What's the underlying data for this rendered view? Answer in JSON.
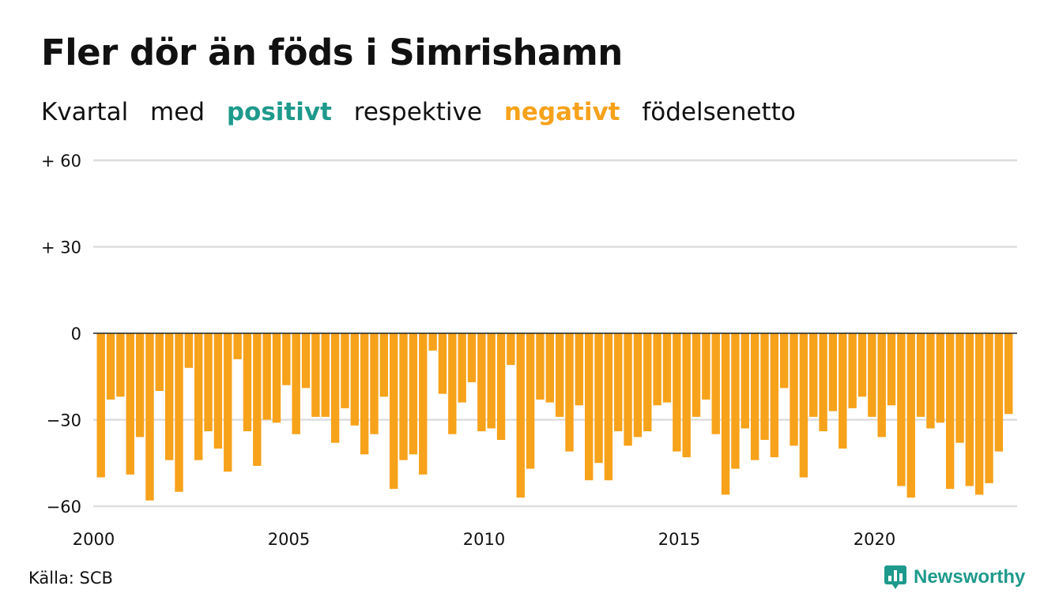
{
  "title": "Fler dör än föds i Simrishamn",
  "subtitle": {
    "parts": [
      "Kvartal",
      "med",
      "positivt",
      "respektive",
      "negativt",
      "födelsenetto"
    ]
  },
  "source": "Källa: SCB",
  "brand": {
    "name": "Newsworthy",
    "icon": "newsworthy-logo-icon"
  },
  "colors": {
    "positive": "#1e9a8c",
    "negative": "#f7a21b",
    "grid": "#dddddd",
    "zero_line": "#222222"
  },
  "chart_data": {
    "type": "bar",
    "title": "Fler dör än föds i Simrishamn",
    "xlabel": "",
    "ylabel": "",
    "ylim": [
      -60,
      60
    ],
    "yticks": [
      60,
      30,
      0,
      -30,
      -60
    ],
    "ytick_labels": [
      "+ 60",
      "+ 30",
      "0",
      "−30",
      "−60"
    ],
    "xticks": [
      2000,
      2005,
      2010,
      2015,
      2020
    ],
    "xtick_labels": [
      "2000",
      "2005",
      "2010",
      "2015",
      "2020"
    ],
    "grid": true,
    "frequency": "quarterly",
    "first_period": "2000 Q1",
    "values": [
      -50,
      -23,
      -22,
      -49,
      -36,
      -58,
      -20,
      -44,
      -55,
      -12,
      -44,
      -34,
      -40,
      -48,
      -9,
      -34,
      -46,
      -30,
      -31,
      -18,
      -35,
      -19,
      -29,
      -29,
      -38,
      -26,
      -32,
      -42,
      -35,
      -22,
      -54,
      -44,
      -42,
      -49,
      -6,
      -21,
      -35,
      -24,
      -17,
      -34,
      -33,
      -37,
      -11,
      -57,
      -47,
      -23,
      -24,
      -29,
      -41,
      -25,
      -51,
      -45,
      -51,
      -34,
      -39,
      -36,
      -34,
      -25,
      -24,
      -41,
      -43,
      -29,
      -23,
      -35,
      -56,
      -47,
      -33,
      -44,
      -37,
      -43,
      -19,
      -39,
      -50,
      -29,
      -34,
      -27,
      -40,
      -26,
      -22,
      -29,
      -36,
      -25,
      -53,
      -57,
      -29,
      -33,
      -31,
      -54,
      -38,
      -53,
      -56,
      -52,
      -41,
      -28
    ]
  }
}
